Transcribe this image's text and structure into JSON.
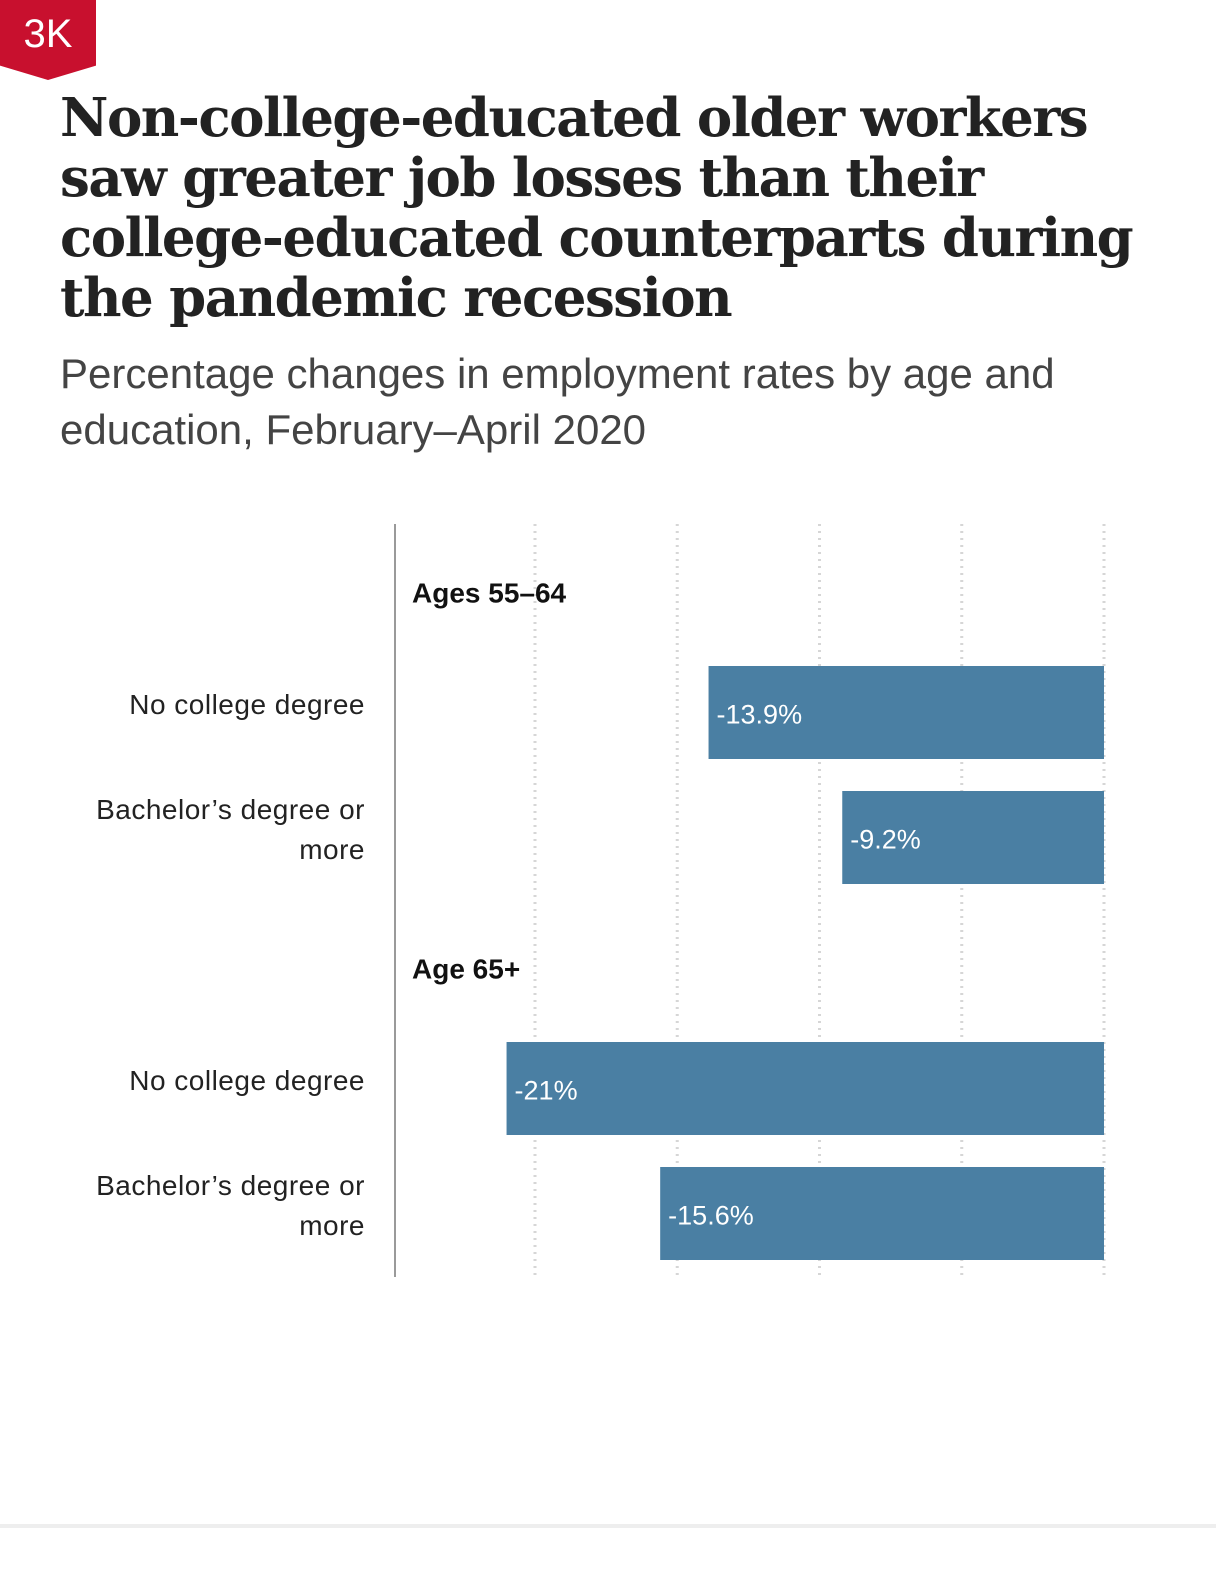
{
  "badge": {
    "label": "3K",
    "color": "#c8102e"
  },
  "title": "Non-college-educated older workers saw greater job losses than their college-educated counterparts during the pandemic recession",
  "subtitle": "Percentage changes in employment rates by age and education, February–April 2020",
  "chart_data": {
    "type": "bar",
    "orientation": "horizontal",
    "grid": true,
    "xlim": [
      -25,
      0
    ],
    "bar_color": "#4a7fa3",
    "groups": [
      {
        "label": "Ages 55–64",
        "bars": [
          {
            "category": "No college degree",
            "value": -13.9,
            "label": "-13.9%"
          },
          {
            "category": "Bachelor’s degree or more",
            "value": -9.2,
            "label": "-9.2%"
          }
        ]
      },
      {
        "label": "Age 65+",
        "bars": [
          {
            "category": "No college degree",
            "value": -21,
            "label": "-21%"
          },
          {
            "category": "Bachelor’s degree or more",
            "value": -15.6,
            "label": "-15.6%"
          }
        ]
      }
    ]
  }
}
